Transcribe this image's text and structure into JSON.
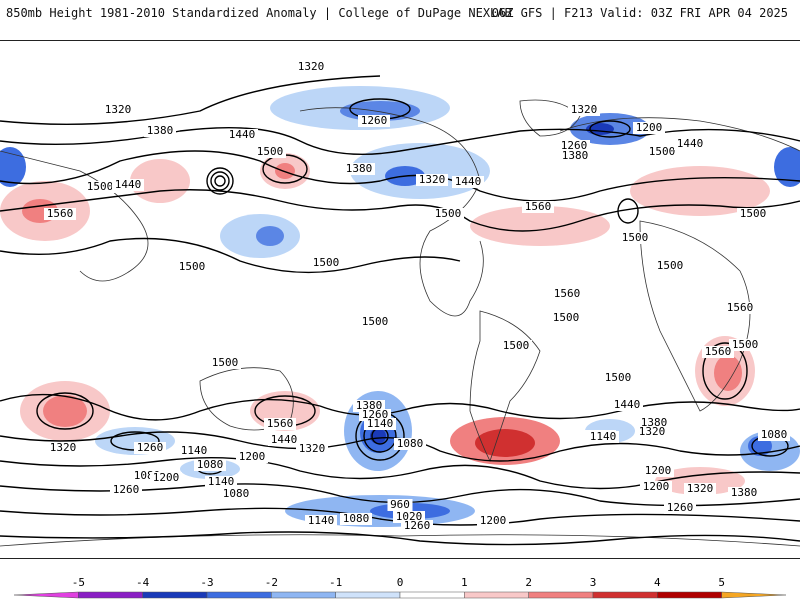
{
  "header": {
    "title": "850mb Height 1981-2010 Standardized Anomaly | College of DuPage NEXLAB",
    "run_info": "06Z GFS | F213 Valid: 03Z FRI APR 04 2025"
  },
  "map": {
    "contour_labels": [
      "1320",
      "1320",
      "1380",
      "1440",
      "1500",
      "1500",
      "1440",
      "1560",
      "1500",
      "1500",
      "1500",
      "1260",
      "1320",
      "1380",
      "1440",
      "1500",
      "1560",
      "1320",
      "1260",
      "1380",
      "1200",
      "1500",
      "1440",
      "1500",
      "1500",
      "1500",
      "1560",
      "1560",
      "1500",
      "1500",
      "1500",
      "1500",
      "1380",
      "1260",
      "1140",
      "1080",
      "1260",
      "1080",
      "1140",
      "1200",
      "1320",
      "1440",
      "1560",
      "1260",
      "1200",
      "1140",
      "1080",
      "1320",
      "1080",
      "1140",
      "1020",
      "960",
      "1080",
      "1200",
      "1260",
      "1500",
      "1440",
      "1380",
      "1260",
      "1140",
      "1320",
      "1200",
      "1200",
      "1320",
      "1380",
      "1260",
      "1080",
      "1560"
    ]
  },
  "colorbar": {
    "ticks": [
      "-5",
      "-4",
      "-3",
      "-2",
      "-1",
      "0",
      "1",
      "2",
      "3",
      "4",
      "5"
    ],
    "colors": [
      "#e040e0",
      "#8a1fc4",
      "#1a3ab8",
      "#3d6de0",
      "#8fb6f2",
      "#cfe2fa",
      "#ffffff",
      "#f8c8c8",
      "#f08080",
      "#d03030",
      "#b00000",
      "#f5a623"
    ]
  }
}
